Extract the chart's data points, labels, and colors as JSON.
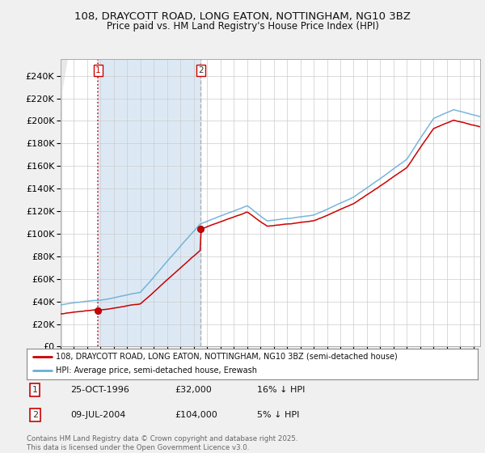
{
  "title": "108, DRAYCOTT ROAD, LONG EATON, NOTTINGHAM, NG10 3BZ",
  "subtitle": "Price paid vs. HM Land Registry's House Price Index (HPI)",
  "xmin": 1994.0,
  "xmax": 2025.5,
  "ymin": 0,
  "ymax": 250000,
  "yticks": [
    0,
    20000,
    40000,
    60000,
    80000,
    100000,
    120000,
    140000,
    160000,
    180000,
    200000,
    220000,
    240000
  ],
  "ytick_labels": [
    "£0",
    "£20K",
    "£40K",
    "£60K",
    "£80K",
    "£100K",
    "£120K",
    "£140K",
    "£160K",
    "£180K",
    "£200K",
    "£220K",
    "£240K"
  ],
  "hpi_color": "#6aaed6",
  "price_color": "#cc0000",
  "shade_color": "#dce9f5",
  "background_color": "#f0f0f0",
  "grid_color": "#cccccc",
  "transaction1_x": 1996.82,
  "transaction1_y": 32000,
  "transaction2_x": 2004.52,
  "transaction2_y": 104000,
  "legend_line1": "108, DRAYCOTT ROAD, LONG EATON, NOTTINGHAM, NG10 3BZ (semi-detached house)",
  "legend_line2": "HPI: Average price, semi-detached house, Erewash",
  "table_row1": [
    "1",
    "25-OCT-1996",
    "£32,000",
    "16% ↓ HPI"
  ],
  "table_row2": [
    "2",
    "09-JUL-2004",
    "£104,000",
    "5% ↓ HPI"
  ],
  "footer": "Contains HM Land Registry data © Crown copyright and database right 2025.\nThis data is licensed under the Open Government Licence v3.0."
}
